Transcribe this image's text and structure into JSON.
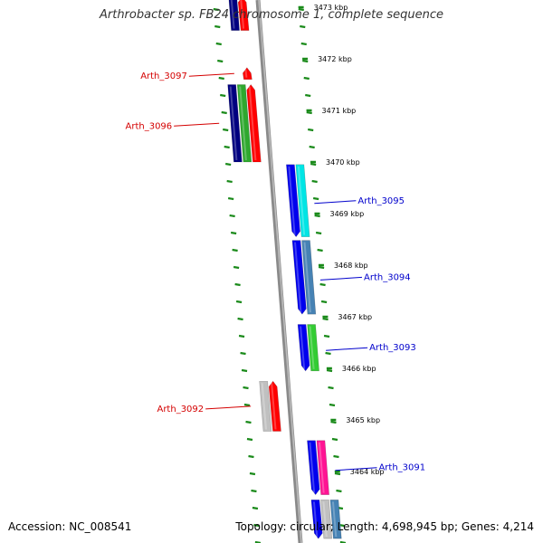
{
  "title": "Arthrobacter sp. FB24 chromosome 1, complete sequence",
  "footer": {
    "accession": "Accession: NC_008541",
    "summary": "Topology: circular; Length: 4,698,945 bp; Genes: 4,214"
  },
  "colors": {
    "backbone": "#8a8a8a",
    "dots": "#1a8a1a",
    "minus_label": "#d40000",
    "plus_label": "#0000cc"
  },
  "ticks": [
    {
      "label": "3473 kbp",
      "kbp": 3473
    },
    {
      "label": "3472 kbp",
      "kbp": 3472
    },
    {
      "label": "3471 kbp",
      "kbp": 3471
    },
    {
      "label": "3470 kbp",
      "kbp": 3470
    },
    {
      "label": "3469 kbp",
      "kbp": 3469
    },
    {
      "label": "3468 kbp",
      "kbp": 3468
    },
    {
      "label": "3467 kbp",
      "kbp": 3467
    },
    {
      "label": "3466 kbp",
      "kbp": 3466
    },
    {
      "label": "3465 kbp",
      "kbp": 3465
    },
    {
      "label": "3464 kbp",
      "kbp": 3464
    }
  ],
  "genes": [
    {
      "id": "g-top-minus",
      "label": "",
      "strand": "minus",
      "start_kbp": 3473.2,
      "end_kbp": 3472.55,
      "bars": [
        "#000080",
        "#ff0000"
      ]
    },
    {
      "id": "g-3097",
      "label": "Arth_3097",
      "strand": "minus",
      "start_kbp": 3471.83,
      "end_kbp": 3471.6,
      "bars": [
        "#ff0000"
      ]
    },
    {
      "id": "g-3096",
      "label": "Arth_3096",
      "strand": "minus",
      "start_kbp": 3471.5,
      "end_kbp": 3470.0,
      "bars": [
        "#000080",
        "#2ea82e",
        "#ff0000"
      ]
    },
    {
      "id": "g-3095",
      "label": "Arth_3095",
      "strand": "plus",
      "start_kbp": 3469.95,
      "end_kbp": 3468.55,
      "bars": [
        "#0000ee",
        "#00e5e5"
      ]
    },
    {
      "id": "g-3094",
      "label": "Arth_3094",
      "strand": "plus",
      "start_kbp": 3468.48,
      "end_kbp": 3467.05,
      "bars": [
        "#0000ee",
        "#4682b4"
      ]
    },
    {
      "id": "g-3093",
      "label": "Arth_3093",
      "strand": "plus",
      "start_kbp": 3466.85,
      "end_kbp": 3465.95,
      "bars": [
        "#0000ee",
        "#33cc33"
      ]
    },
    {
      "id": "g-3092",
      "label": "Arth_3092",
      "strand": "minus",
      "start_kbp": 3465.75,
      "end_kbp": 3464.78,
      "bars": [
        "#c0c0c0",
        "#ff0000"
      ]
    },
    {
      "id": "g-3091",
      "label": "Arth_3091",
      "strand": "plus",
      "start_kbp": 3464.6,
      "end_kbp": 3463.55,
      "bars": [
        "#0000ee",
        "#ff1493"
      ]
    },
    {
      "id": "g-bottom-plus",
      "label": "",
      "strand": "plus",
      "start_kbp": 3463.45,
      "end_kbp": 3462.7,
      "bars": [
        "#0000ee",
        "#c0c0c0",
        "#4682b4"
      ]
    }
  ]
}
